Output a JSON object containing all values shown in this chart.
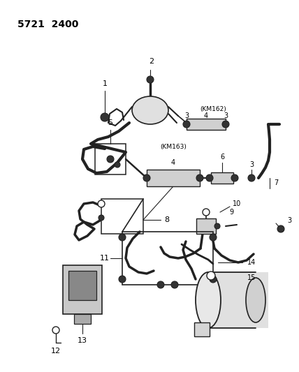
{
  "title": "5721  2400",
  "background_color": "#ffffff",
  "line_color": "#222222",
  "text_color": "#000000",
  "fig_width": 4.28,
  "fig_height": 5.33,
  "dpi": 100
}
